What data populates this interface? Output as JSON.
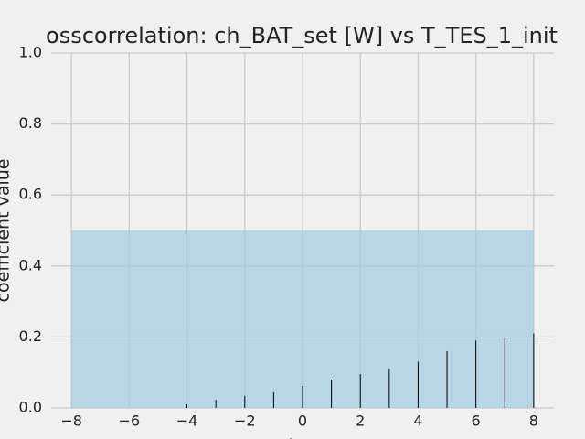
{
  "chart_data": {
    "type": "vlines",
    "title": "osscorrelation: ch_BAT_set [W] vs T_TES_1_init",
    "x_label": "lag",
    "y_label": "coefficient value",
    "x": [
      -8,
      -7,
      -6,
      -5,
      -4,
      -3,
      -2,
      -1,
      0,
      1,
      2,
      3,
      4,
      5,
      6,
      7,
      8
    ],
    "values": [
      0,
      0,
      0,
      0,
      0.01,
      0.023,
      0.034,
      0.044,
      0.062,
      0.08,
      0.095,
      0.11,
      0.13,
      0.16,
      0.19,
      0.196,
      0.21
    ],
    "color": "#000000",
    "band": {
      "x": [
        -8,
        8
      ],
      "y": [
        0,
        0.5
      ],
      "color": "#9ecae1"
    },
    "xlim": [
      -8.7,
      8.7
    ],
    "xticks": [
      -8,
      -6,
      -4,
      -2,
      0,
      2,
      4,
      6,
      8
    ],
    "ylim": [
      0,
      1
    ],
    "yticks": [
      0.0,
      0.2,
      0.4,
      0.6,
      0.8,
      1.0
    ],
    "grid": true
  }
}
